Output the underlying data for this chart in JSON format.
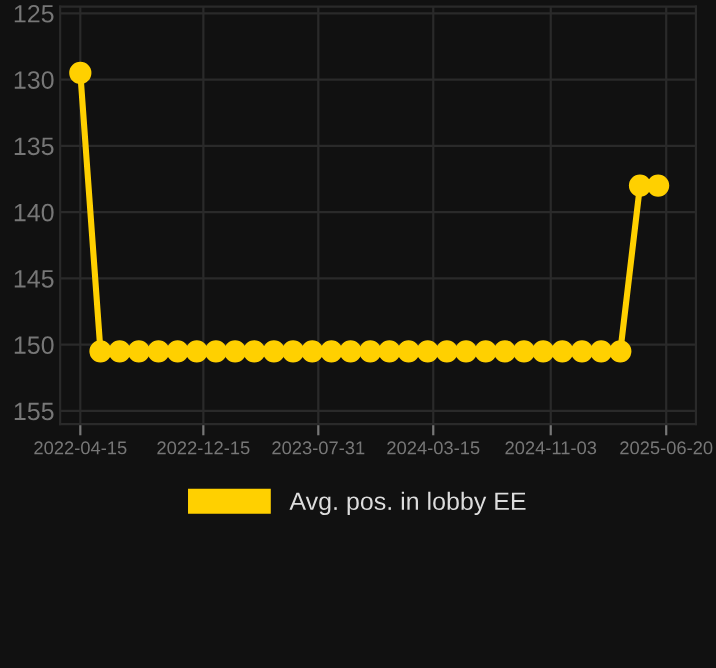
{
  "chart_data": {
    "type": "line",
    "x": [
      "2022-04-15",
      "2022-05-25",
      "2022-07-02",
      "2022-08-09",
      "2022-09-17",
      "2022-10-25",
      "2022-12-02",
      "2023-01-09",
      "2023-02-16",
      "2023-03-26",
      "2023-05-04",
      "2023-06-11",
      "2023-07-19",
      "2023-08-26",
      "2023-10-03",
      "2023-11-11",
      "2023-12-19",
      "2024-01-26",
      "2024-03-04",
      "2024-04-11",
      "2024-05-19",
      "2024-06-27",
      "2024-08-04",
      "2024-09-11",
      "2024-10-19",
      "2024-11-26",
      "2025-01-04",
      "2025-02-11",
      "2025-03-21",
      "2025-04-29",
      "2025-06-04"
    ],
    "series": [
      {
        "name": "Avg. pos. in lobby EE",
        "color": "#ffd000",
        "values": [
          129.5,
          150.5,
          150.5,
          150.5,
          150.5,
          150.5,
          150.5,
          150.5,
          150.5,
          150.5,
          150.5,
          150.5,
          150.5,
          150.5,
          150.5,
          150.5,
          150.5,
          150.5,
          150.5,
          150.5,
          150.5,
          150.5,
          150.5,
          150.5,
          150.5,
          150.5,
          150.5,
          150.5,
          150.5,
          138,
          138
        ]
      }
    ],
    "xlim": [
      "2022-03-06",
      "2025-08-18"
    ],
    "xticks": [
      "2022-04-15",
      "2022-12-15",
      "2023-07-31",
      "2024-03-15",
      "2024-11-03",
      "2025-06-20"
    ],
    "ylim": [
      156,
      124.5
    ],
    "yticks": [
      125,
      130,
      135,
      140,
      145,
      150,
      155
    ],
    "grid": true,
    "legend": "bottom",
    "marker": "circle",
    "line_style": "solid"
  }
}
